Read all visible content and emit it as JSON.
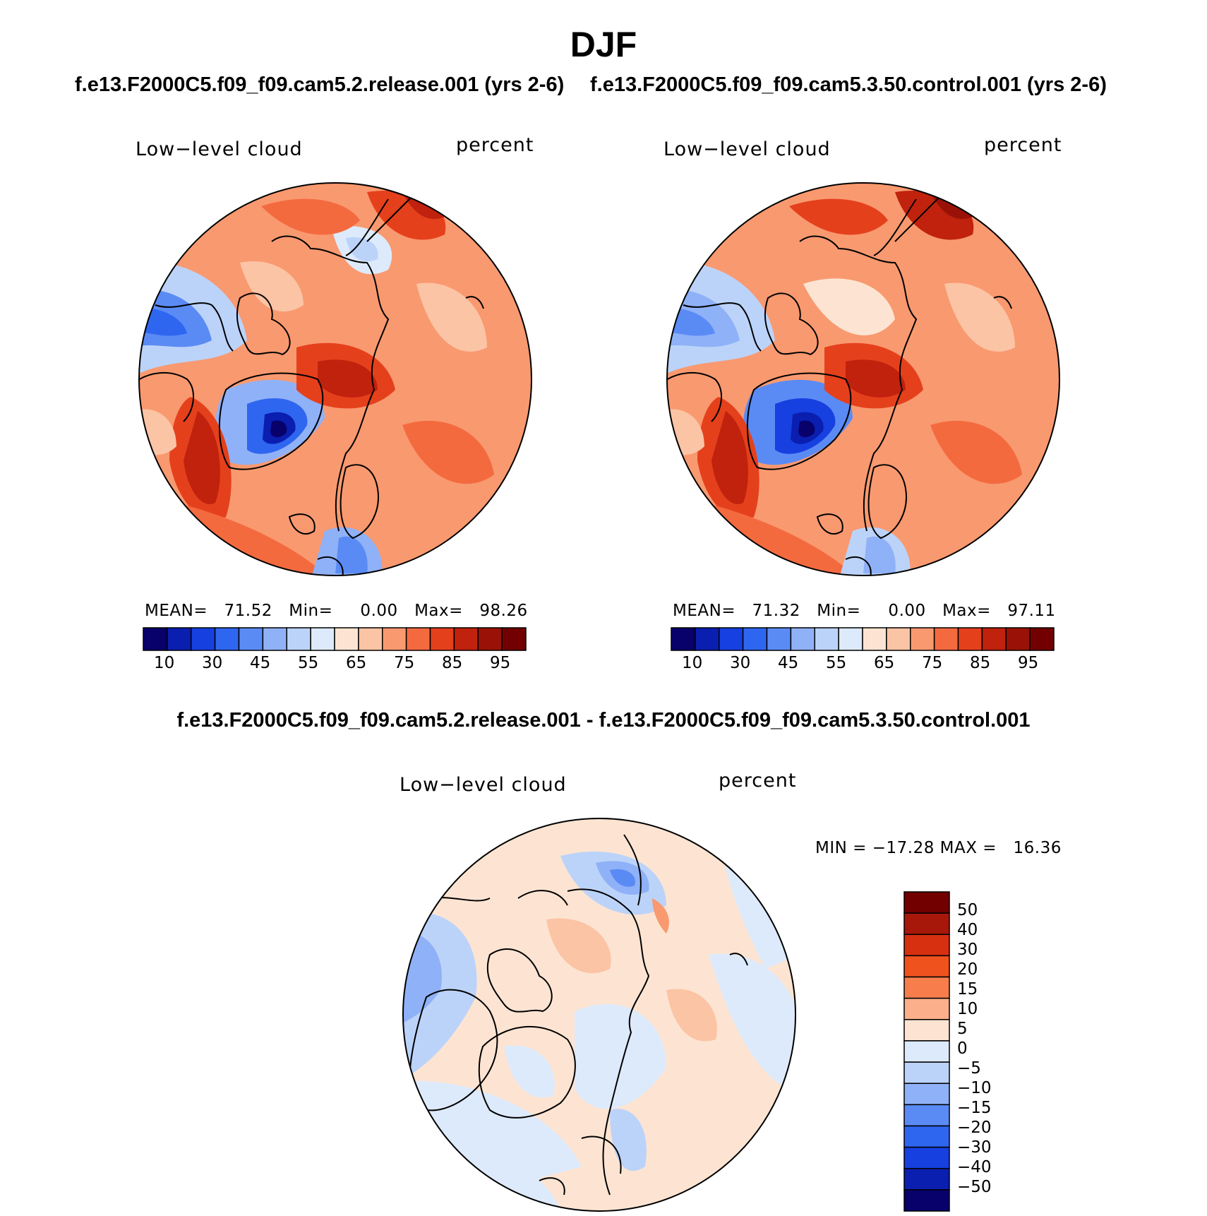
{
  "figure": {
    "season_title": "DJF",
    "case1_title": "f.e13.F2000C5.f09_f09.cam5.2.release.001 (yrs 2-6)",
    "case2_title": "f.e13.F2000C5.f09_f09.cam5.3.50.control.001 (yrs 2-6)",
    "diff_title": "f.e13.F2000C5.f09_f09.cam5.2.release.001 - f.e13.F2000C5.f09_f09.cam5.3.50.control.001"
  },
  "panels": [
    {
      "variable": "Low−level cloud",
      "units": "percent",
      "stats": "MEAN=   71.52   Min=     0.00   Max=   98.26",
      "colorbar_labels": [
        "10",
        "30",
        "45",
        "55",
        "65",
        "75",
        "85",
        "95"
      ]
    },
    {
      "variable": "Low−level cloud",
      "units": "percent",
      "stats": "MEAN=   71.32   Min=     0.00   Max=   97.11",
      "colorbar_labels": [
        "10",
        "30",
        "45",
        "55",
        "65",
        "75",
        "85",
        "95"
      ]
    }
  ],
  "diff_panel": {
    "variable": "Low−level cloud",
    "units": "percent",
    "stats": "MIN = −17.28 MAX =   16.36",
    "colorbar_labels": [
      "50",
      "40",
      "30",
      "20",
      "15",
      "10",
      "5",
      "0",
      "−5",
      "−10",
      "−15",
      "−20",
      "−30",
      "−40",
      "−50"
    ]
  },
  "colors": {
    "abs_scale": [
      "#08006b",
      "#0a1eb0",
      "#1640e0",
      "#2f66f0",
      "#5a8bf5",
      "#8fb1f7",
      "#bcd3f9",
      "#ddeafb",
      "#fde4d2",
      "#fbc4a5",
      "#f9996f",
      "#f46a3f",
      "#e5401c",
      "#c0220e",
      "#9a1207",
      "#720000"
    ],
    "diff_scale": [
      "#720000",
      "#a8180a",
      "#d63010",
      "#f0521e",
      "#f77e4c",
      "#fbaf8a",
      "#fde4d2",
      "#ddeafb",
      "#bcd3f9",
      "#8fb1f7",
      "#5a8bf5",
      "#2f66f0",
      "#1640e0",
      "#0a1eb0",
      "#08006b"
    ],
    "land_outline": "#000000"
  }
}
